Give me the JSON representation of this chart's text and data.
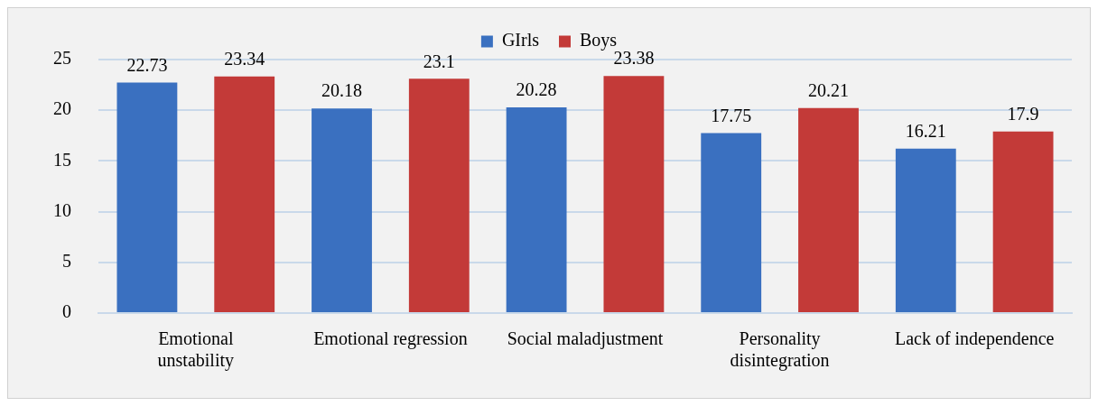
{
  "chart_data": {
    "type": "bar",
    "categories": [
      "Emotional unstability",
      "Emotional regression",
      "Social maladjustment",
      "Personality disintegration",
      "Lack of independence"
    ],
    "series": [
      {
        "name": "GIrls",
        "color": "#3a70c0",
        "values": [
          22.73,
          20.18,
          20.28,
          17.75,
          16.21
        ]
      },
      {
        "name": "Boys",
        "color": "#c33a38",
        "values": [
          23.34,
          23.1,
          23.38,
          20.21,
          17.9
        ]
      }
    ],
    "ylim": [
      0,
      25
    ],
    "yticks": [
      0,
      5,
      10,
      15,
      20,
      25
    ],
    "grid": "y",
    "legend": "top",
    "data_labels": true
  }
}
